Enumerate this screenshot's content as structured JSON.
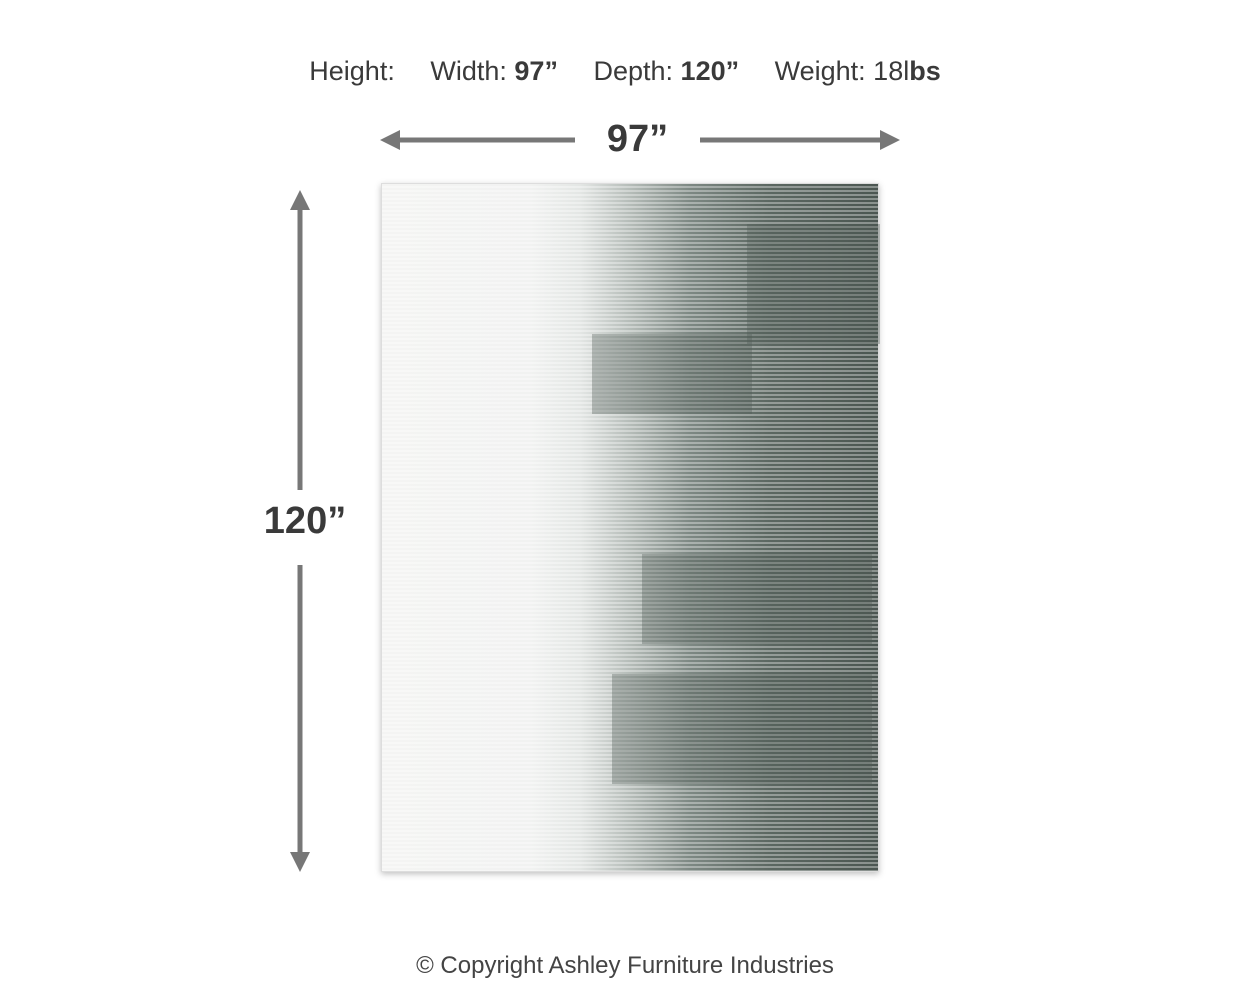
{
  "specs": {
    "height_label": "Height:",
    "width_label": "Width:",
    "width_value": "97”",
    "depth_label": "Depth:",
    "depth_value": "120”",
    "weight_label": "Weight: 18l",
    "weight_unit": "bs"
  },
  "dimensions": {
    "width": "97”",
    "height": "120”"
  },
  "colors": {
    "arrow": "#777777",
    "text": "#3a3a3a"
  },
  "footer": {
    "copyright": "© Copyright Ashley Furniture Industries"
  }
}
